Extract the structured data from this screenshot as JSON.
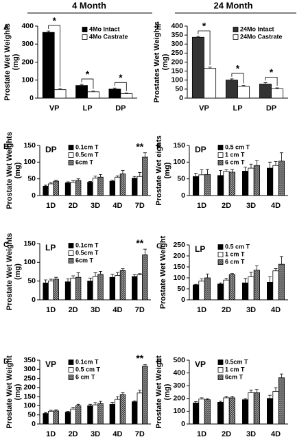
{
  "column_titles": [
    "4 Month",
    "24 Month"
  ],
  "chart_data": [
    {
      "type": "bar",
      "panel": "A",
      "ylabel": [
        "Prostate Wet Weights",
        "(mg)"
      ],
      "categories": [
        "VP",
        "LP",
        "DP"
      ],
      "ylim": [
        0,
        400
      ],
      "yticks": [
        0,
        100,
        200,
        300,
        400
      ],
      "legend": "top-right",
      "annotations": [
        "*",
        "*",
        "*"
      ],
      "series": [
        {
          "name": "4Mo Intact",
          "color": "#000000",
          "values": [
            365,
            70,
            50
          ],
          "errors": [
            8,
            6,
            6
          ]
        },
        {
          "name": "4Mo Castrate",
          "color": "#ffffff",
          "values": [
            47,
            35,
            25
          ],
          "errors": [
            6,
            4,
            3
          ]
        }
      ]
    },
    {
      "type": "bar",
      "panel": "E",
      "ylabel": [
        "Prostates Wet Weights",
        "(mg)"
      ],
      "categories": [
        "VP",
        "LP",
        "DP"
      ],
      "ylim": [
        0,
        400
      ],
      "yticks": [
        0,
        50,
        100,
        150,
        200,
        250,
        300,
        350,
        400
      ],
      "legend": "top-right",
      "annotations": [
        "*",
        "*",
        "*"
      ],
      "series": [
        {
          "name": "24Mo Intact",
          "color": "#333333",
          "values": [
            338,
            100,
            78
          ],
          "errors": [
            5,
            7,
            8
          ]
        },
        {
          "name": "24Mo Castrate",
          "color": "#ffffff",
          "values": [
            165,
            65,
            52
          ],
          "errors": [
            7,
            5,
            5
          ]
        }
      ]
    },
    {
      "type": "bar",
      "panel": "B",
      "inset": "DP",
      "ylabel": [
        "Prostate Wet Weights",
        "(mg)"
      ],
      "categories": [
        "1D",
        "2D",
        "3D",
        "4D",
        "7D"
      ],
      "ylim": [
        0,
        150
      ],
      "yticks": [
        0,
        50,
        100,
        150
      ],
      "legend": "top-left",
      "annotations": [
        "**"
      ],
      "series": [
        {
          "name": "0.1cm T",
          "color": "#000000",
          "values": [
            28,
            38,
            40,
            43,
            52
          ],
          "errors": [
            3,
            3,
            2,
            3,
            5
          ]
        },
        {
          "name": "0.5cm T",
          "color": "#ffffff",
          "values": [
            35,
            40,
            52,
            55,
            57
          ],
          "errors": [
            4,
            4,
            6,
            4,
            12
          ]
        },
        {
          "name": "6cm T",
          "color": "#aaaaaa",
          "hatch": true,
          "values": [
            43,
            45,
            55,
            65,
            115
          ],
          "errors": [
            3,
            5,
            8,
            10,
            13
          ]
        }
      ]
    },
    {
      "type": "bar",
      "panel": "F",
      "inset": "DP",
      "ylabel": [
        "Prostate Wet eights",
        "(mg)"
      ],
      "categories": [
        "1D",
        "2D",
        "3D",
        "4D"
      ],
      "ylim": [
        0,
        150
      ],
      "yticks": [
        0,
        50,
        100,
        150
      ],
      "legend": "top-left",
      "series": [
        {
          "name": "0.5 cm T",
          "color": "#000000",
          "values": [
            57,
            60,
            73,
            82
          ],
          "errors": [
            10,
            15,
            12,
            18
          ]
        },
        {
          "name": "1 cm T",
          "color": "#ffffff",
          "values": [
            62,
            72,
            82,
            90
          ],
          "errors": [
            15,
            5,
            12,
            12
          ]
        },
        {
          "name": "6 cm T",
          "color": "#aaaaaa",
          "hatch": true,
          "values": [
            63,
            70,
            90,
            103
          ],
          "errors": [
            15,
            8,
            15,
            25
          ]
        }
      ]
    },
    {
      "type": "bar",
      "panel": "C",
      "inset": "LP",
      "ylabel": [
        "Prostate Wet Weights",
        "(mg)"
      ],
      "categories": [
        "1D",
        "2D",
        "3D",
        "4D",
        "7D"
      ],
      "ylim": [
        0,
        150
      ],
      "yticks": [
        0,
        50,
        100,
        150
      ],
      "legend": "top-left",
      "annotations": [
        "**"
      ],
      "series": [
        {
          "name": "0.1cm T",
          "color": "#000000",
          "values": [
            45,
            48,
            50,
            60,
            62
          ],
          "errors": [
            8,
            8,
            8,
            8,
            5
          ]
        },
        {
          "name": "0.5cm T",
          "color": "#ffffff",
          "values": [
            50,
            58,
            62,
            65,
            67
          ],
          "errors": [
            5,
            6,
            10,
            8,
            3
          ]
        },
        {
          "name": "6cm T",
          "color": "#aaaaaa",
          "hatch": true,
          "values": [
            55,
            60,
            68,
            78,
            120
          ],
          "errors": [
            5,
            12,
            8,
            5,
            15
          ]
        }
      ]
    },
    {
      "type": "bar",
      "panel": "G",
      "inset": "LP",
      "ylabel": [
        "Prostate Wet Weight"
      ],
      "categories": [
        "1D",
        "2D",
        "3D",
        "4D"
      ],
      "ylim": [
        0,
        250
      ],
      "yticks": [
        0,
        50,
        100,
        150,
        200,
        250
      ],
      "legend": "top-left",
      "series": [
        {
          "name": "0.5 cm T",
          "color": "#000000",
          "values": [
            68,
            72,
            77,
            80
          ],
          "errors": [
            3,
            5,
            20,
            25
          ]
        },
        {
          "name": "1 cm T",
          "color": "#ffffff",
          "values": [
            85,
            90,
            105,
            132
          ],
          "errors": [
            10,
            8,
            20,
            10
          ]
        },
        {
          "name": "6 cm T",
          "color": "#aaaaaa",
          "hatch": true,
          "values": [
            100,
            115,
            135,
            162
          ],
          "errors": [
            18,
            5,
            20,
            35
          ]
        }
      ]
    },
    {
      "type": "bar",
      "panel": "D",
      "inset": "VP",
      "ylabel": [
        "Prostate Wet Weight",
        "(mg)"
      ],
      "categories": [
        "1D",
        "2D",
        "3D",
        "4D",
        "7D"
      ],
      "ylim": [
        0,
        350
      ],
      "yticks": [
        0,
        50,
        100,
        150,
        200,
        250,
        300,
        350
      ],
      "legend": "top-left",
      "annotations": [
        "**"
      ],
      "series": [
        {
          "name": "0.1cm T",
          "color": "#000000",
          "values": [
            58,
            65,
            100,
            108,
            122
          ],
          "errors": [
            5,
            5,
            8,
            10,
            5
          ]
        },
        {
          "name": "0.5 cm T",
          "color": "#ffffff",
          "values": [
            70,
            82,
            105,
            135,
            170
          ],
          "errors": [
            5,
            10,
            12,
            15,
            15
          ]
        },
        {
          "name": "6 cm T",
          "color": "#aaaaaa",
          "hatch": true,
          "values": [
            72,
            100,
            112,
            162,
            318
          ],
          "errors": [
            5,
            8,
            12,
            10,
            8
          ]
        }
      ]
    },
    {
      "type": "bar",
      "panel": "H",
      "inset": "VP",
      "ylabel": [
        "Prostate Wet Weight",
        "(mg)"
      ],
      "categories": [
        "1D",
        "2D",
        "3D",
        "4D"
      ],
      "ylim": [
        0,
        500
      ],
      "yticks": [
        0,
        100,
        200,
        300,
        400,
        500
      ],
      "legend": "top-left",
      "series": [
        {
          "name": "0.5cm T",
          "color": "#000000",
          "values": [
            165,
            170,
            190,
            200
          ],
          "errors": [
            10,
            8,
            8,
            25
          ]
        },
        {
          "name": "1 cm T",
          "color": "#ffffff",
          "values": [
            195,
            205,
            245,
            255
          ],
          "errors": [
            10,
            12,
            20,
            30
          ]
        },
        {
          "name": "6cm T",
          "color": "#aaaaaa",
          "hatch": true,
          "values": [
            190,
            205,
            245,
            362
          ],
          "errors": [
            8,
            12,
            25,
            30
          ]
        }
      ]
    }
  ]
}
